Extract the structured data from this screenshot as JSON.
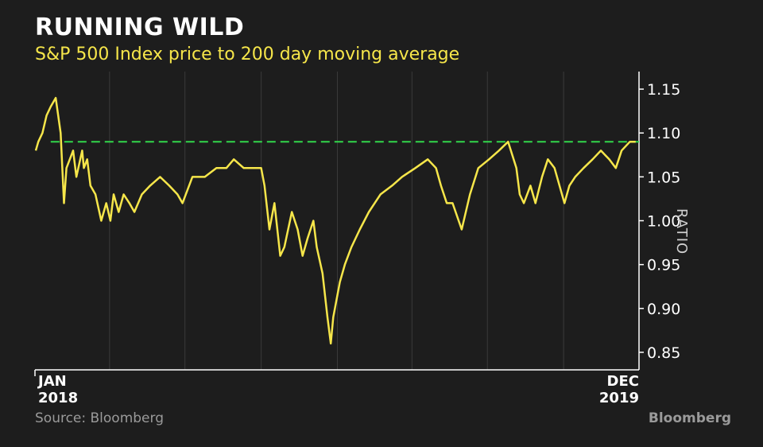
{
  "header": {
    "title": "RUNNING WILD",
    "subtitle": "S&P 500 Index price to 200 day moving average"
  },
  "footer": {
    "source": "Source: Bloomberg",
    "brand": "Bloomberg"
  },
  "colors": {
    "background": "#1d1d1d",
    "line": "#f6e64a",
    "reference_line": "#32d74b",
    "grid": "#3a3a3a",
    "axis": "#ffffff"
  },
  "chart_data": {
    "type": "line",
    "title": "RUNNING WILD",
    "subtitle": "S&P 500 Index price to 200 day moving average",
    "xlabel": "",
    "ylabel": "RATIO",
    "ylim": [
      0.83,
      1.17
    ],
    "xlim": [
      "2018-01",
      "2019-12"
    ],
    "y_axis_position": "right",
    "grid": "vertical",
    "y_ticks": [
      0.85,
      0.9,
      0.95,
      1.0,
      1.05,
      1.1,
      1.15
    ],
    "y_tick_labels": [
      "0.85",
      "0.90",
      "0.95",
      "1.00",
      "1.05",
      "1.10",
      "1.15"
    ],
    "x_tick_labels": [
      {
        "x": "2018-01",
        "line1": "JAN",
        "line2": "2018"
      },
      {
        "x": "2019-12",
        "line1": "DEC",
        "line2": "2019"
      }
    ],
    "reference_line": {
      "y": 1.09,
      "style": "dashed"
    },
    "series": [
      {
        "x": [
          "2018-01-02",
          "2018-01-05",
          "2018-01-10",
          "2018-01-15",
          "2018-01-20",
          "2018-01-26",
          "2018-02-01",
          "2018-02-05",
          "2018-02-08",
          "2018-02-12",
          "2018-02-16",
          "2018-02-20",
          "2018-02-27",
          "2018-03-01",
          "2018-03-05",
          "2018-03-09",
          "2018-03-15",
          "2018-03-22",
          "2018-03-28",
          "2018-04-02",
          "2018-04-06",
          "2018-04-12",
          "2018-04-18",
          "2018-04-25",
          "2018-05-01",
          "2018-05-10",
          "2018-05-20",
          "2018-06-01",
          "2018-06-12",
          "2018-06-22",
          "2018-06-28",
          "2018-07-10",
          "2018-07-25",
          "2018-08-08",
          "2018-08-20",
          "2018-08-29",
          "2018-09-10",
          "2018-09-20",
          "2018-10-01",
          "2018-10-05",
          "2018-10-11",
          "2018-10-17",
          "2018-10-24",
          "2018-10-29",
          "2018-11-07",
          "2018-11-14",
          "2018-11-20",
          "2018-11-26",
          "2018-12-03",
          "2018-12-07",
          "2018-12-14",
          "2018-12-20",
          "2018-12-24",
          "2018-12-27",
          "2019-01-04",
          "2019-01-10",
          "2019-01-18",
          "2019-01-28",
          "2019-02-08",
          "2019-02-22",
          "2019-03-08",
          "2019-03-20",
          "2019-04-05",
          "2019-04-20",
          "2019-04-30",
          "2019-05-06",
          "2019-05-13",
          "2019-05-20",
          "2019-05-31",
          "2019-06-10",
          "2019-06-20",
          "2019-07-03",
          "2019-07-15",
          "2019-07-26",
          "2019-08-05",
          "2019-08-09",
          "2019-08-14",
          "2019-08-22",
          "2019-08-28",
          "2019-09-05",
          "2019-09-12",
          "2019-09-20",
          "2019-10-02",
          "2019-10-08",
          "2019-10-15",
          "2019-10-25",
          "2019-11-05",
          "2019-11-15",
          "2019-11-25",
          "2019-12-03",
          "2019-12-10",
          "2019-12-20",
          "2019-12-27"
        ],
        "y": [
          1.08,
          1.09,
          1.1,
          1.12,
          1.13,
          1.14,
          1.1,
          1.02,
          1.06,
          1.07,
          1.08,
          1.05,
          1.08,
          1.06,
          1.07,
          1.04,
          1.03,
          1.0,
          1.02,
          1.0,
          1.03,
          1.01,
          1.03,
          1.02,
          1.01,
          1.03,
          1.04,
          1.05,
          1.04,
          1.03,
          1.02,
          1.05,
          1.05,
          1.06,
          1.06,
          1.07,
          1.06,
          1.06,
          1.06,
          1.04,
          0.99,
          1.02,
          0.96,
          0.97,
          1.01,
          0.99,
          0.96,
          0.98,
          1.0,
          0.97,
          0.94,
          0.89,
          0.86,
          0.89,
          0.93,
          0.95,
          0.97,
          0.99,
          1.01,
          1.03,
          1.04,
          1.05,
          1.06,
          1.07,
          1.06,
          1.04,
          1.02,
          1.02,
          0.99,
          1.03,
          1.06,
          1.07,
          1.08,
          1.09,
          1.06,
          1.03,
          1.02,
          1.04,
          1.02,
          1.05,
          1.07,
          1.06,
          1.02,
          1.04,
          1.05,
          1.06,
          1.07,
          1.08,
          1.07,
          1.06,
          1.08,
          1.09,
          1.09
        ]
      }
    ]
  }
}
